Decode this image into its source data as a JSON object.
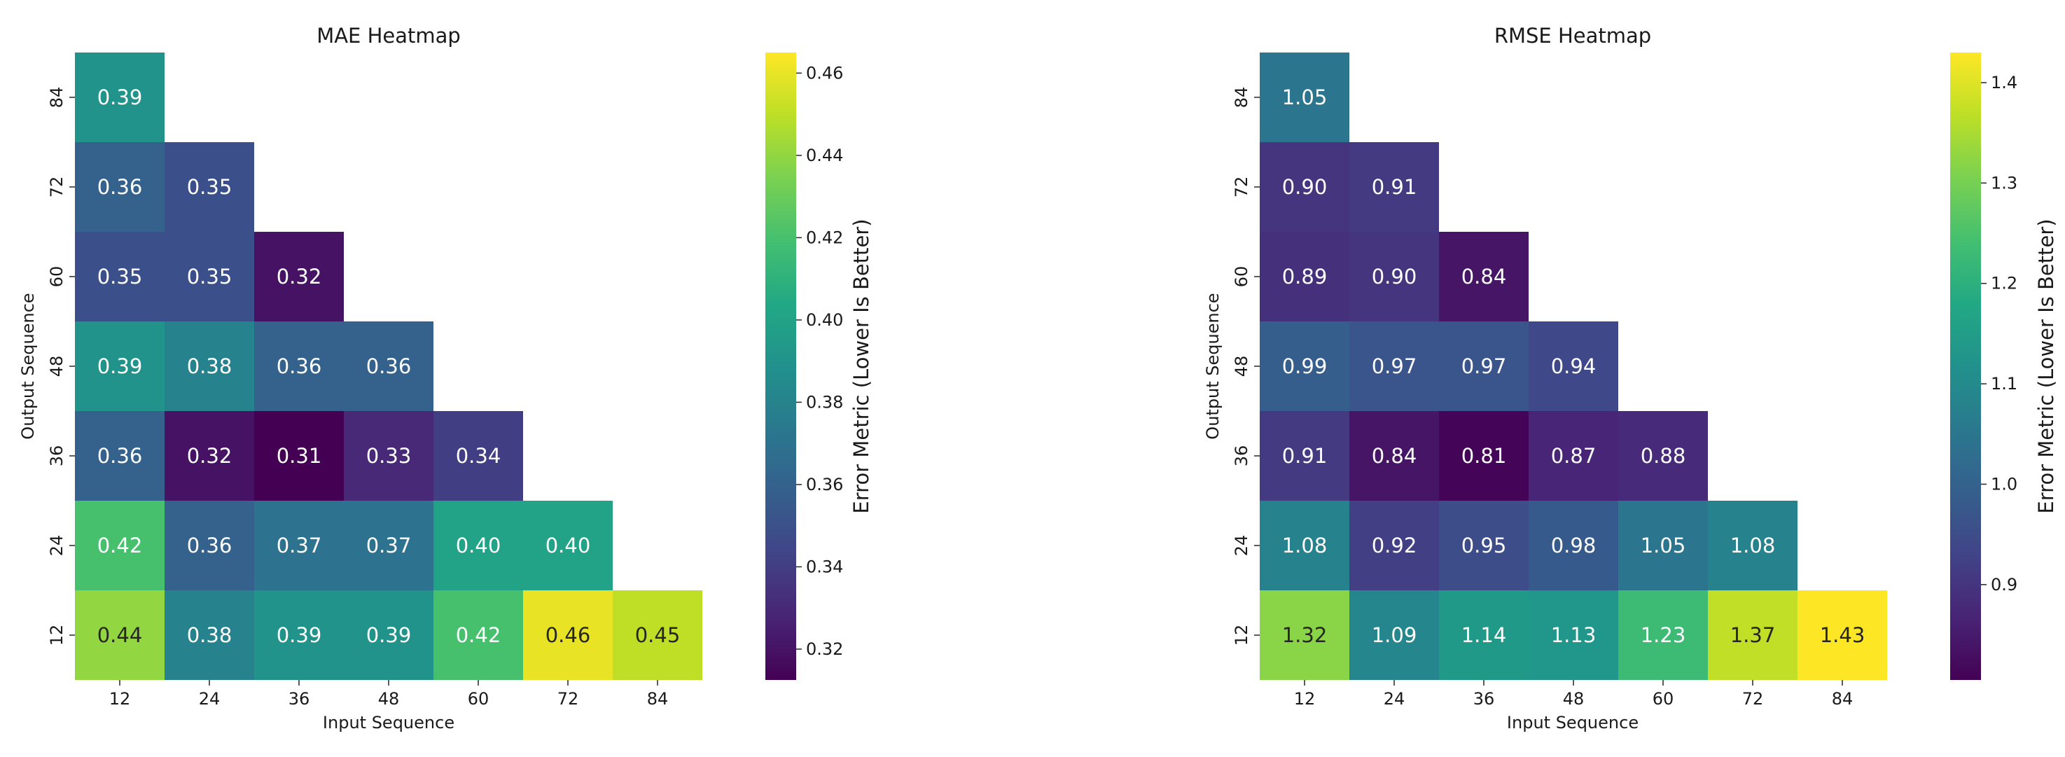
{
  "chart_data": [
    {
      "type": "heatmap",
      "title": "MAE Heatmap",
      "xlabel": "Input Sequence",
      "ylabel": "Output Sequence",
      "x": [
        "12",
        "24",
        "36",
        "48",
        "60",
        "72",
        "84"
      ],
      "y": [
        "12",
        "24",
        "36",
        "48",
        "60",
        "72",
        "84"
      ],
      "values": [
        [
          0.44,
          0.38,
          0.39,
          0.39,
          0.42,
          0.46,
          0.45
        ],
        [
          0.42,
          0.36,
          0.37,
          0.37,
          0.4,
          0.4,
          null
        ],
        [
          0.36,
          0.32,
          0.31,
          0.33,
          0.34,
          null,
          null
        ],
        [
          0.39,
          0.38,
          0.36,
          0.36,
          null,
          null,
          null
        ],
        [
          0.35,
          0.35,
          0.32,
          null,
          null,
          null,
          null
        ],
        [
          0.36,
          0.35,
          null,
          null,
          null,
          null,
          null
        ],
        [
          0.39,
          null,
          null,
          null,
          null,
          null,
          null
        ]
      ],
      "colormap": "viridis",
      "colorbar": {
        "label": "Error Metric (Lower Is Better)",
        "range": [
          0.3125,
          0.465
        ],
        "ticks": [
          "0.32",
          "0.34",
          "0.36",
          "0.38",
          "0.40",
          "0.42",
          "0.44",
          "0.46"
        ]
      }
    },
    {
      "type": "heatmap",
      "title": "RMSE Heatmap",
      "xlabel": "Input Sequence",
      "ylabel": "Output Sequence",
      "x": [
        "12",
        "24",
        "36",
        "48",
        "60",
        "72",
        "84"
      ],
      "y": [
        "12",
        "24",
        "36",
        "48",
        "60",
        "72",
        "84"
      ],
      "values": [
        [
          1.32,
          1.09,
          1.14,
          1.13,
          1.23,
          1.37,
          1.43
        ],
        [
          1.08,
          0.92,
          0.95,
          0.98,
          1.05,
          1.08,
          null
        ],
        [
          0.91,
          0.84,
          0.81,
          0.87,
          0.88,
          null,
          null
        ],
        [
          0.99,
          0.97,
          0.97,
          0.94,
          null,
          null,
          null
        ],
        [
          0.89,
          0.9,
          0.84,
          null,
          null,
          null,
          null
        ],
        [
          0.9,
          0.91,
          null,
          null,
          null,
          null,
          null
        ],
        [
          1.05,
          null,
          null,
          null,
          null,
          null,
          null
        ]
      ],
      "colormap": "viridis",
      "colorbar": {
        "label": "Error Metric (Lower Is Better)",
        "range": [
          0.805,
          1.43
        ],
        "ticks": [
          "0.9",
          "1.0",
          "1.1",
          "1.2",
          "1.3",
          "1.4"
        ]
      }
    }
  ]
}
